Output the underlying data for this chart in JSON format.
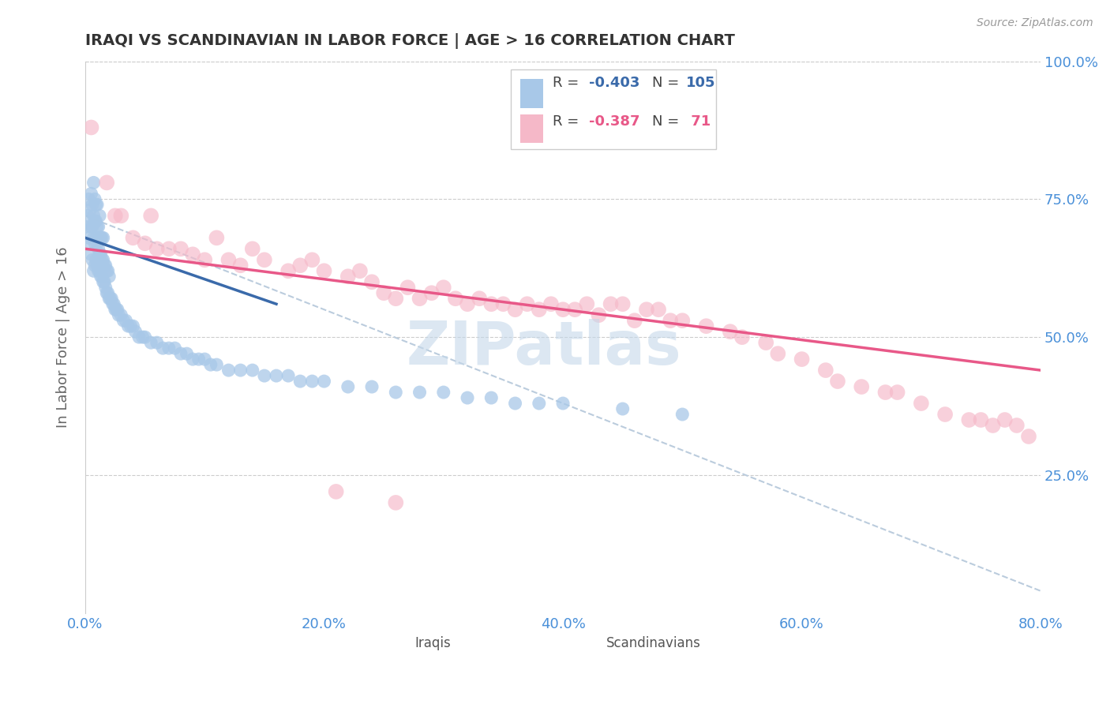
{
  "title": "IRAQI VS SCANDINAVIAN IN LABOR FORCE | AGE > 16 CORRELATION CHART",
  "source_text": "Source: ZipAtlas.com",
  "ylabel": "In Labor Force | Age > 16",
  "xlim": [
    0.0,
    0.8
  ],
  "ylim": [
    0.0,
    1.0
  ],
  "xtick_labels": [
    "0.0%",
    "20.0%",
    "40.0%",
    "60.0%",
    "80.0%"
  ],
  "xtick_values": [
    0.0,
    0.2,
    0.4,
    0.6,
    0.8
  ],
  "ytick_labels": [
    "25.0%",
    "50.0%",
    "75.0%",
    "100.0%"
  ],
  "ytick_values": [
    0.25,
    0.5,
    0.75,
    1.0
  ],
  "iraqis_color": "#a8c8e8",
  "scandinavians_color": "#f5b8c8",
  "iraqis_line_color": "#3a6aaa",
  "scandinavians_line_color": "#e85888",
  "dashed_line_color": "#bbccdd",
  "legend_border_color": "#cccccc",
  "R_iraqis": -0.403,
  "N_iraqis": 105,
  "R_scandinavians": -0.387,
  "N_scandinavians": 71,
  "legend_label_iraqis": "Iraqis",
  "legend_label_scandinavians": "Scandinavians",
  "watermark": "ZIPatlas",
  "watermark_color": "#c5d8ea",
  "background_color": "#ffffff",
  "title_color": "#333333",
  "axis_label_color": "#666666",
  "tick_label_color": "#4a90d9",
  "iraqis_x": [
    0.001,
    0.002,
    0.003,
    0.003,
    0.004,
    0.004,
    0.005,
    0.005,
    0.005,
    0.006,
    0.006,
    0.006,
    0.007,
    0.007,
    0.007,
    0.007,
    0.008,
    0.008,
    0.008,
    0.008,
    0.009,
    0.009,
    0.009,
    0.009,
    0.01,
    0.01,
    0.01,
    0.01,
    0.011,
    0.011,
    0.011,
    0.012,
    0.012,
    0.012,
    0.012,
    0.013,
    0.013,
    0.013,
    0.014,
    0.014,
    0.014,
    0.015,
    0.015,
    0.015,
    0.016,
    0.016,
    0.017,
    0.017,
    0.018,
    0.018,
    0.019,
    0.019,
    0.02,
    0.02,
    0.021,
    0.022,
    0.023,
    0.024,
    0.025,
    0.026,
    0.027,
    0.028,
    0.03,
    0.032,
    0.034,
    0.036,
    0.038,
    0.04,
    0.042,
    0.045,
    0.048,
    0.05,
    0.055,
    0.06,
    0.065,
    0.07,
    0.075,
    0.08,
    0.085,
    0.09,
    0.095,
    0.1,
    0.105,
    0.11,
    0.12,
    0.13,
    0.14,
    0.15,
    0.16,
    0.17,
    0.18,
    0.19,
    0.2,
    0.22,
    0.24,
    0.26,
    0.28,
    0.3,
    0.32,
    0.34,
    0.36,
    0.38,
    0.4,
    0.45,
    0.5
  ],
  "iraqis_y": [
    0.7,
    0.72,
    0.68,
    0.75,
    0.67,
    0.73,
    0.65,
    0.7,
    0.76,
    0.64,
    0.7,
    0.74,
    0.62,
    0.68,
    0.72,
    0.78,
    0.63,
    0.67,
    0.71,
    0.75,
    0.64,
    0.68,
    0.71,
    0.74,
    0.63,
    0.67,
    0.7,
    0.74,
    0.62,
    0.66,
    0.7,
    0.62,
    0.65,
    0.68,
    0.72,
    0.61,
    0.65,
    0.68,
    0.61,
    0.64,
    0.68,
    0.6,
    0.64,
    0.68,
    0.6,
    0.63,
    0.59,
    0.63,
    0.58,
    0.62,
    0.58,
    0.62,
    0.57,
    0.61,
    0.57,
    0.57,
    0.56,
    0.56,
    0.55,
    0.55,
    0.55,
    0.54,
    0.54,
    0.53,
    0.53,
    0.52,
    0.52,
    0.52,
    0.51,
    0.5,
    0.5,
    0.5,
    0.49,
    0.49,
    0.48,
    0.48,
    0.48,
    0.47,
    0.47,
    0.46,
    0.46,
    0.46,
    0.45,
    0.45,
    0.44,
    0.44,
    0.44,
    0.43,
    0.43,
    0.43,
    0.42,
    0.42,
    0.42,
    0.41,
    0.41,
    0.4,
    0.4,
    0.4,
    0.39,
    0.39,
    0.38,
    0.38,
    0.38,
    0.37,
    0.36
  ],
  "scandinavians_x": [
    0.005,
    0.018,
    0.025,
    0.03,
    0.04,
    0.05,
    0.055,
    0.06,
    0.07,
    0.08,
    0.09,
    0.1,
    0.11,
    0.12,
    0.13,
    0.14,
    0.15,
    0.17,
    0.18,
    0.19,
    0.2,
    0.22,
    0.23,
    0.24,
    0.25,
    0.26,
    0.27,
    0.28,
    0.29,
    0.3,
    0.31,
    0.32,
    0.33,
    0.34,
    0.35,
    0.36,
    0.37,
    0.38,
    0.39,
    0.4,
    0.41,
    0.42,
    0.43,
    0.44,
    0.45,
    0.46,
    0.47,
    0.48,
    0.49,
    0.5,
    0.52,
    0.54,
    0.55,
    0.57,
    0.58,
    0.6,
    0.62,
    0.63,
    0.65,
    0.67,
    0.68,
    0.7,
    0.72,
    0.74,
    0.75,
    0.76,
    0.77,
    0.78,
    0.79,
    0.21,
    0.26
  ],
  "scandinavians_y": [
    0.88,
    0.78,
    0.72,
    0.72,
    0.68,
    0.67,
    0.72,
    0.66,
    0.66,
    0.66,
    0.65,
    0.64,
    0.68,
    0.64,
    0.63,
    0.66,
    0.64,
    0.62,
    0.63,
    0.64,
    0.62,
    0.61,
    0.62,
    0.6,
    0.58,
    0.57,
    0.59,
    0.57,
    0.58,
    0.59,
    0.57,
    0.56,
    0.57,
    0.56,
    0.56,
    0.55,
    0.56,
    0.55,
    0.56,
    0.55,
    0.55,
    0.56,
    0.54,
    0.56,
    0.56,
    0.53,
    0.55,
    0.55,
    0.53,
    0.53,
    0.52,
    0.51,
    0.5,
    0.49,
    0.47,
    0.46,
    0.44,
    0.42,
    0.41,
    0.4,
    0.4,
    0.38,
    0.36,
    0.35,
    0.35,
    0.34,
    0.35,
    0.34,
    0.32,
    0.22,
    0.2
  ],
  "iraqi_line_x": [
    0.0,
    0.16
  ],
  "iraqi_line_y": [
    0.68,
    0.56
  ],
  "scand_line_x": [
    0.0,
    0.8
  ],
  "scand_line_y": [
    0.66,
    0.44
  ],
  "dash_line_x": [
    0.0,
    0.8
  ],
  "dash_line_y": [
    0.72,
    0.04
  ]
}
